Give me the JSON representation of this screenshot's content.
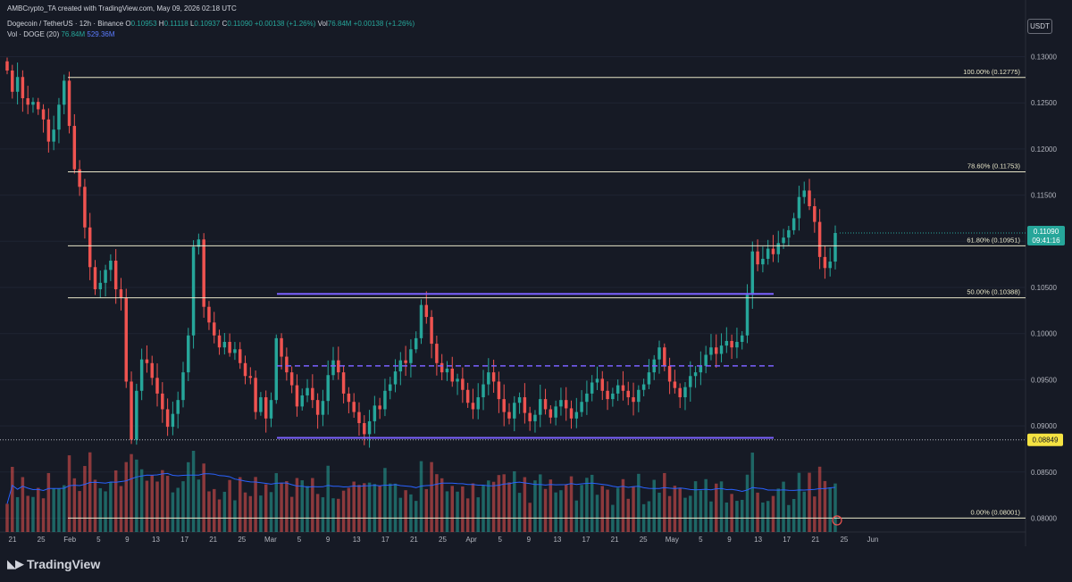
{
  "header": {
    "credit": "AMBCrypto_TA created with TradingView.com, May 09, 2026 02:18 UTC",
    "symbol": "Dogecoin / TetherUS · 12h · Binance",
    "ohlc": {
      "o_label": "O",
      "o": "0.10953",
      "h_label": "H",
      "h": "0.11118",
      "l_label": "L",
      "l": "0.10937",
      "c_label": "C",
      "c": "0.11090",
      "chg": "+0.00138 (+1.26%)",
      "vol_label": "Vol",
      "vol": "76.84M",
      "vol_chg": "+0.00138 (+1.26%)"
    },
    "vol_row": {
      "label": "Vol · DOGE (20)",
      "v1": "76.84M",
      "v2": "529.36M"
    },
    "currency": "USDT"
  },
  "logo": "TradingView",
  "chart_data": {
    "type": "candlestick",
    "timeframe": "12h",
    "ylim": [
      0.0785,
      0.1315
    ],
    "y_ticks": [
      "0.13000",
      "0.12500",
      "0.12000",
      "0.11500",
      "0.11000",
      "0.10500",
      "0.10000",
      "0.09500",
      "0.09000",
      "0.08500",
      "0.08000"
    ],
    "x_ticks": [
      "21",
      "25",
      "Feb",
      "5",
      "9",
      "13",
      "17",
      "21",
      "25",
      "Mar",
      "5",
      "9",
      "13",
      "17",
      "21",
      "25",
      "Apr",
      "5",
      "9",
      "13",
      "17",
      "21",
      "25",
      "May",
      "5",
      "9",
      "13",
      "17",
      "21",
      "25",
      "Jun"
    ],
    "fib_levels": [
      {
        "label": "100.00% (0.12775)",
        "value": 0.12775
      },
      {
        "label": "78.60% (0.11753)",
        "value": 0.11753
      },
      {
        "label": "61.80% (0.10951)",
        "value": 0.10951
      },
      {
        "label": "50.00% (0.10388)",
        "value": 0.10388
      },
      {
        "label": "0.00% (0.08001)",
        "value": 0.08001
      }
    ],
    "range_box": {
      "high": 0.1043,
      "mid": 0.0965,
      "low": 0.0887
    },
    "last_price": {
      "value": 0.1109,
      "label": "0.11090",
      "countdown": "09:41:16"
    },
    "marked_price": {
      "value": 0.08849,
      "label": "0.08849"
    },
    "colors": {
      "up": "#26a69a",
      "down": "#ef5350",
      "fib": "#e8e6c8",
      "range": "#7b61ff",
      "bg": "#161a25",
      "grid": "#1f2433",
      "vol_ma": "#2962ff",
      "marked": "#f5e342"
    },
    "closes": [
      0.1285,
      0.1262,
      0.1278,
      0.1255,
      0.1248,
      0.1251,
      0.1243,
      0.1232,
      0.1208,
      0.1221,
      0.1248,
      0.1274,
      0.1225,
      0.1178,
      0.1159,
      0.1115,
      0.1072,
      0.1048,
      0.1055,
      0.1069,
      0.1079,
      0.1048,
      0.1039,
      0.0948,
      0.0885,
      0.0938,
      0.0972,
      0.0968,
      0.0952,
      0.0935,
      0.0918,
      0.0899,
      0.0913,
      0.0928,
      0.0958,
      0.0998,
      0.1094,
      0.1102,
      0.1029,
      0.1012,
      0.0998,
      0.0985,
      0.0991,
      0.0979,
      0.0983,
      0.0968,
      0.0954,
      0.0952,
      0.0915,
      0.0931,
      0.0908,
      0.0928,
      0.0995,
      0.0975,
      0.0958,
      0.0944,
      0.0921,
      0.0933,
      0.0941,
      0.0928,
      0.0912,
      0.0927,
      0.0955,
      0.0971,
      0.0958,
      0.0935,
      0.0926,
      0.0915,
      0.0903,
      0.0891,
      0.0905,
      0.0922,
      0.0918,
      0.0938,
      0.0945,
      0.0959,
      0.0971,
      0.0968,
      0.0983,
      0.0995,
      0.1031,
      0.1018,
      0.0989,
      0.0968,
      0.0958,
      0.0962,
      0.0948,
      0.0951,
      0.0939,
      0.0925,
      0.0918,
      0.0931,
      0.0945,
      0.0958,
      0.0948,
      0.0929,
      0.0915,
      0.0908,
      0.0925,
      0.0931,
      0.0914,
      0.0905,
      0.0912,
      0.0929,
      0.0918,
      0.0909,
      0.0921,
      0.0928,
      0.0919,
      0.0908,
      0.0915,
      0.0926,
      0.0935,
      0.0947,
      0.0951,
      0.0938,
      0.0929,
      0.0935,
      0.0944,
      0.0938,
      0.0931,
      0.0926,
      0.0939,
      0.0945,
      0.0958,
      0.0972,
      0.0985,
      0.0965,
      0.0948,
      0.0941,
      0.0931,
      0.0942,
      0.0954,
      0.0958,
      0.0965,
      0.0977,
      0.0985,
      0.0978,
      0.0987,
      0.0992,
      0.0985,
      0.0991,
      0.0998,
      0.1042,
      0.1089,
      0.1075,
      0.1081,
      0.1092,
      0.1086,
      0.1098,
      0.1104,
      0.1112,
      0.1125,
      0.1148,
      0.1155,
      0.1138,
      0.1121,
      0.1083,
      0.1071,
      0.1078,
      0.1109
    ]
  }
}
